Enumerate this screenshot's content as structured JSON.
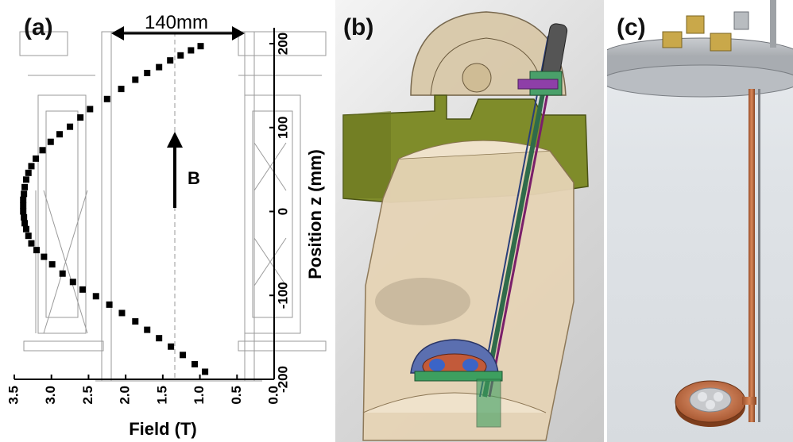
{
  "panels": {
    "a": {
      "label": "(a)"
    },
    "b": {
      "label": "(b)"
    },
    "c": {
      "label": "(c)"
    }
  },
  "annotations": {
    "width": "140mm",
    "field_arrow": "B"
  },
  "chart_data": {
    "type": "scatter",
    "title": "",
    "xlabel": "Field (T)",
    "ylabel": "Position z (mm)",
    "xlim": [
      3.5,
      0.0
    ],
    "ylim": [
      -200,
      200
    ],
    "x_reversed": true,
    "x_ticks": [
      3.5,
      3.0,
      2.5,
      2.0,
      1.5,
      1.0,
      0.5,
      0.0
    ],
    "x_tick_labels": [
      "3.5",
      "3.0",
      "2.5",
      "2.0",
      "1.5",
      "1.0",
      "0.5",
      "0.0"
    ],
    "y_ticks": [
      -200,
      -100,
      0,
      100,
      200
    ],
    "y_tick_labels": [
      "-200",
      "-100",
      "0",
      "100",
      "200"
    ],
    "grid": false,
    "marker": "square",
    "marker_color": "#000000",
    "series": [
      {
        "x": [
          0.93,
          1.07,
          1.23,
          1.39,
          1.55,
          1.71,
          1.87,
          2.05,
          2.22,
          2.4,
          2.58,
          2.71,
          2.85,
          2.99,
          3.1,
          3.2,
          3.27,
          3.31,
          3.34,
          3.36,
          3.37,
          3.38,
          3.38,
          3.38,
          3.37,
          3.36,
          3.34,
          3.31,
          3.27,
          3.21,
          3.12,
          3.01,
          2.89,
          2.75,
          2.61,
          2.48,
          2.25,
          2.06,
          1.87,
          1.71,
          1.55,
          1.4,
          1.26,
          1.12,
          0.99
        ],
        "y": [
          -191,
          -182,
          -171,
          -161,
          -151,
          -141,
          -131,
          -121,
          -111,
          -101,
          -93,
          -84,
          -74,
          -63,
          -54,
          -46,
          -38,
          -29,
          -21,
          -14,
          -7,
          0,
          7,
          14,
          21,
          29,
          38,
          46,
          54,
          63,
          73,
          83,
          92,
          101,
          112,
          122,
          134,
          146,
          157,
          165,
          172,
          180,
          186,
          192,
          197
        ]
      }
    ]
  }
}
